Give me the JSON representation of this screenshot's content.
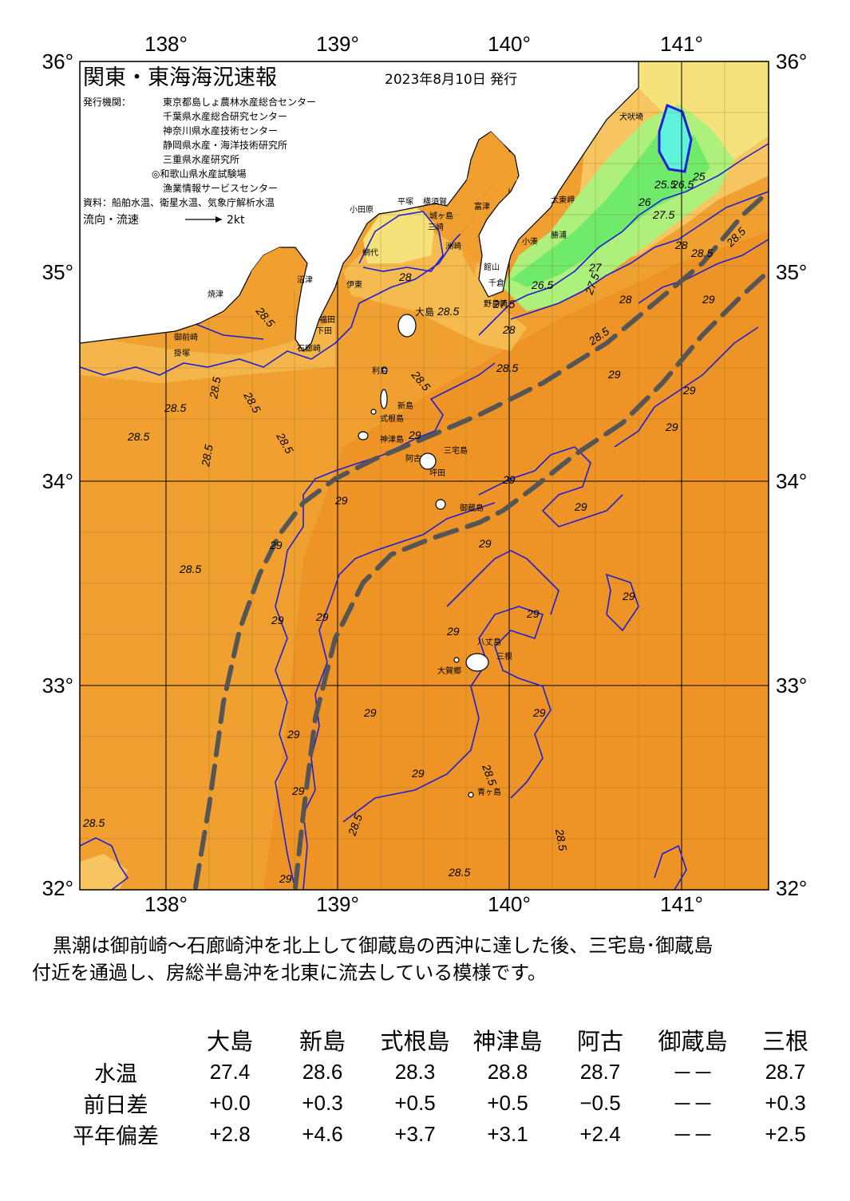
{
  "header": {
    "title": "関東・東海海況速報",
    "date": "2023年8月10日 発行",
    "issuer_label": "発行機関：",
    "issuers": [
      "東京都島しょ農林水産総合センター",
      "千葉県水産総合研究センター",
      "神奈川県水産技術センター",
      "静岡県水産・海洋技術研究所",
      "三重県水産研究所",
      "◎和歌山県水産試験場",
      "漁業情報サービスセンター"
    ],
    "sources": "資料：船舶水温、衛星水温、気象庁解析水温",
    "flow_label": "流向・流速",
    "flow_scale": "2kt"
  },
  "axes": {
    "lon_ticks": [
      "138°",
      "139°",
      "140°",
      "141°"
    ],
    "lat_ticks": [
      "36°",
      "35°",
      "34°",
      "33°",
      "32°"
    ],
    "lon_range": [
      137.5,
      141.5
    ],
    "lat_range": [
      32,
      36
    ]
  },
  "colors": {
    "sea_warm": "#f0a030",
    "sea_hot": "#ee9426",
    "sea_cool": "#f7c660",
    "sea_cooler": "#f6e27a",
    "green_light": "#aef07c",
    "green": "#70ea6a",
    "cyan": "#5ff3de",
    "isotherm": "#1e1ed8",
    "kuroshio": "#555555"
  },
  "place_labels": [
    "大島",
    "利島",
    "新島",
    "式根島",
    "神津島",
    "三宅島",
    "阿古",
    "坪田",
    "御蔵島",
    "八丈島",
    "三根",
    "大賀郷",
    "青ヶ島",
    "野島崎",
    "犬吠埼",
    "太東岬",
    "勝浦",
    "小湊",
    "館山",
    "千倉",
    "洲崎",
    "富津",
    "横須賀",
    "城ヶ島",
    "三崎",
    "平塚",
    "小田原",
    "網代",
    "伊東",
    "下田",
    "石廊崎",
    "沼津",
    "焼津",
    "御前崎",
    "掛塚",
    "福田"
  ],
  "isotherm_labels": [
    "25",
    "25.5",
    "26",
    "26.5",
    "27",
    "27.5",
    "28",
    "28.5",
    "29"
  ],
  "summary": [
    "黒潮は御前崎～石廊崎沖を北上して御蔵島の西沖に達した後、三宅島･御蔵島",
    "付近を通過し、房総半島沖を北東に流去している模様です。"
  ],
  "table": {
    "stations": [
      "大島",
      "新島",
      "式根島",
      "神津島",
      "阿古",
      "御蔵島",
      "三根"
    ],
    "rows": [
      {
        "label": "水温",
        "values": [
          "27.4",
          "28.6",
          "28.3",
          "28.8",
          "28.7",
          "－－",
          "28.7"
        ]
      },
      {
        "label": "前日差",
        "values": [
          "+0.0",
          "+0.3",
          "+0.5",
          "+0.5",
          "−0.5",
          "－－",
          "+0.3"
        ]
      },
      {
        "label": "平年偏差",
        "values": [
          "+2.8",
          "+4.6",
          "+3.7",
          "+3.1",
          "+2.4",
          "－－",
          "+2.5"
        ]
      }
    ]
  }
}
